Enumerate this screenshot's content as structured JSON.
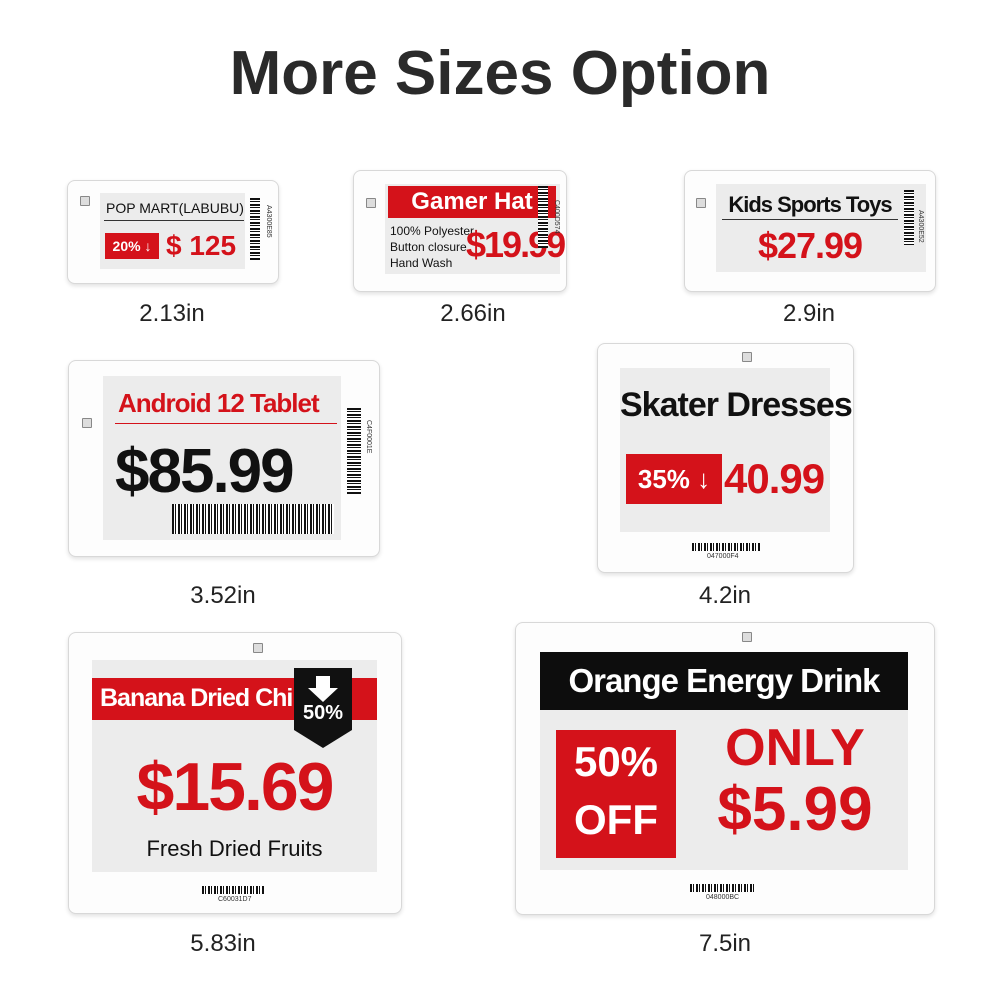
{
  "title": "More Sizes Option",
  "tags": [
    {
      "size": "2.13in",
      "name": "POP MART(LABUBU)",
      "discount": "20% ↓",
      "price": "$ 125",
      "code": "A4300E85"
    },
    {
      "size": "2.66in",
      "name": "Gamer Hat",
      "details": [
        "100% Polyester",
        "Button closure",
        "Hand Wash"
      ],
      "price": "$19.99",
      "code": "C400D574"
    },
    {
      "size": "2.9in",
      "name": "Kids Sports Toys",
      "price": "$27.99",
      "code": "A4300E52"
    },
    {
      "size": "3.52in",
      "name": "Android 12 Tablet",
      "price": "$85.99",
      "code": "C4F0001E"
    },
    {
      "size": "4.2in",
      "name": "Skater Dresses",
      "discount": "35% ↓",
      "price": "40.99",
      "code": "047000F4"
    },
    {
      "size": "5.83in",
      "name": "Banana Dried Chips",
      "discount": "50%",
      "price": "$15.69",
      "subtitle": "Fresh Dried Fruits",
      "code": "C60031D7"
    },
    {
      "size": "7.5in",
      "name": "Orange Energy Drink",
      "discount": [
        "50%",
        "OFF"
      ],
      "headline": "ONLY",
      "price": "$5.99",
      "code": "048000BC"
    }
  ]
}
